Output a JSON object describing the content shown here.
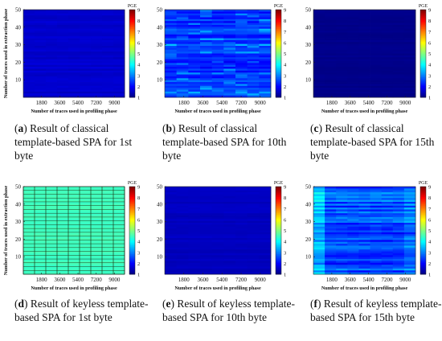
{
  "figure": {
    "type": "heatmap-grid"
  },
  "chart_data": [
    {
      "type": "heatmap",
      "caption_tag": "(a)",
      "caption": "Result of classical template-based SPA for 1st byte",
      "xlabel": "Number of traces used in profiling phase",
      "ylabel": "Number of traces used in extraction phase",
      "xticks": [
        "1800",
        "3600",
        "5400",
        "7200",
        "9000"
      ],
      "yticks": [
        "10",
        "20",
        "30",
        "40",
        "50"
      ],
      "xlim": [
        0,
        10000
      ],
      "ylim": [
        0,
        50
      ],
      "colorbar": {
        "label": "PGE",
        "ticks": [
          "1",
          "2",
          "3",
          "4",
          "5",
          "6",
          "7",
          "8",
          "9"
        ],
        "range": [
          1,
          9
        ],
        "colormap": "jet"
      },
      "values_summary": {
        "base_pge": 1.6,
        "variation": 0.12,
        "pattern": "uniform with faint horizontal banding"
      }
    },
    {
      "type": "heatmap",
      "caption_tag": "(b)",
      "caption": "Result of classical template-based SPA for 10th byte",
      "xlabel": "Number of traces used in profiling phase",
      "ylabel": "",
      "xticks": [
        "1800",
        "3600",
        "5400",
        "7200",
        "9000"
      ],
      "yticks": [
        "10",
        "20",
        "30",
        "40",
        "50"
      ],
      "xlim": [
        0,
        10000
      ],
      "ylim": [
        0,
        50
      ],
      "colorbar": {
        "label": "PGE",
        "ticks": [
          "1",
          "2",
          "3",
          "4",
          "5",
          "6",
          "7",
          "8",
          "9"
        ],
        "range": [
          1,
          9
        ],
        "colormap": "jet"
      },
      "values_summary": {
        "base_pge": 2.4,
        "variation": 0.5,
        "pattern": "noisy horizontal streaks"
      }
    },
    {
      "type": "heatmap",
      "caption_tag": "(c)",
      "caption": "Result of classical template-based SPA for 15th byte",
      "xlabel": "Number of traces used in profiling phase",
      "ylabel": "",
      "xticks": [
        "1800",
        "3600",
        "5400",
        "7200",
        "9000"
      ],
      "yticks": [
        "10",
        "20",
        "30",
        "40",
        "50"
      ],
      "xlim": [
        0,
        10000
      ],
      "ylim": [
        0,
        50
      ],
      "colorbar": {
        "label": "PGE",
        "ticks": [
          "1",
          "2",
          "3",
          "4",
          "5",
          "6",
          "7",
          "8",
          "9"
        ],
        "range": [
          1,
          9
        ],
        "colormap": "jet"
      },
      "values_summary": {
        "base_pge": 1.08,
        "variation": 0.06,
        "pattern": "almost uniform dark blue"
      }
    },
    {
      "type": "heatmap",
      "caption_tag": "(d)",
      "caption": "Result of keyless template-based SPA for 1st byte",
      "xlabel": "Number of traces used in profiling phase",
      "ylabel": "Number of traces used in extraction phase",
      "xticks": [
        "1800",
        "3600",
        "5400",
        "7200",
        "9000"
      ],
      "yticks": [
        "10",
        "20",
        "30",
        "40",
        "50"
      ],
      "xlim": [
        0,
        10000
      ],
      "ylim": [
        0,
        50
      ],
      "colorbar": {
        "label": "PGE",
        "ticks": [
          "1",
          "2",
          "3",
          "4",
          "5",
          "6",
          "7",
          "8",
          "9"
        ],
        "range": [
          1,
          9
        ],
        "colormap": "jet"
      },
      "values_summary": {
        "base_pge": 4.5,
        "variation": 0.1,
        "pattern": "uniform light green with dark grid lines"
      }
    },
    {
      "type": "heatmap",
      "caption_tag": "(e)",
      "caption": "Result of keyless template-based SPA for 10th byte",
      "xlabel": "Number of traces used in profiling phase",
      "ylabel": "",
      "xticks": [
        "1800",
        "3600",
        "5400",
        "7200",
        "9000"
      ],
      "yticks": [
        "10",
        "20",
        "30",
        "40",
        "50"
      ],
      "xlim": [
        0,
        10000
      ],
      "ylim": [
        0,
        50
      ],
      "colorbar": {
        "label": "PGE",
        "ticks": [
          "1",
          "2",
          "3",
          "4",
          "5",
          "6",
          "7",
          "8",
          "9"
        ],
        "range": [
          1,
          9
        ],
        "colormap": "jet"
      },
      "values_summary": {
        "base_pge": 1.5,
        "variation": 0.1,
        "pattern": "mostly uniform blue, faint streaks"
      }
    },
    {
      "type": "heatmap",
      "caption_tag": "(f)",
      "caption": "Result of keyless template-based SPA for 15th byte",
      "xlabel": "Number of traces used in profiling phase",
      "ylabel": "",
      "xticks": [
        "1800",
        "3600",
        "5400",
        "7200",
        "9000"
      ],
      "yticks": [
        "10",
        "20",
        "30",
        "40",
        "50"
      ],
      "xlim": [
        0,
        10000
      ],
      "ylim": [
        0,
        50
      ],
      "colorbar": {
        "label": "PGE",
        "ticks": [
          "1",
          "2",
          "3",
          "4",
          "5",
          "6",
          "7",
          "8",
          "9"
        ],
        "range": [
          1,
          9
        ],
        "colormap": "jet"
      },
      "values_summary": {
        "base_pge": 2.6,
        "variation": 0.7,
        "pattern": "lighter on the left edge, noisy vertical and horizontal streaks"
      }
    }
  ]
}
